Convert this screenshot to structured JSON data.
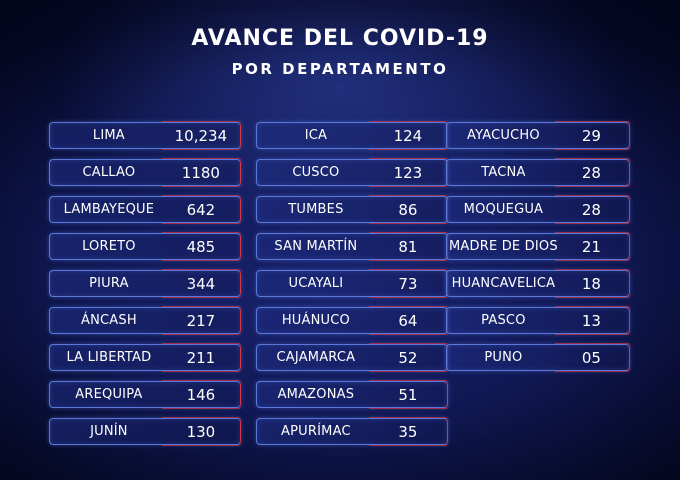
{
  "title": "AVANCE DEL COVID-19",
  "subtitle": "POR DEPARTAMENTO",
  "columns": [
    {
      "rows": [
        {
          "name": "LIMA",
          "value": "10,234"
        },
        {
          "name": "CALLAO",
          "value": "1180"
        },
        {
          "name": "LAMBAYEQUE",
          "value": "642"
        },
        {
          "name": "LORETO",
          "value": "485"
        },
        {
          "name": "PIURA",
          "value": "344"
        },
        {
          "name": "ÁNCASH",
          "value": "217"
        },
        {
          "name": "LA LIBERTAD",
          "value": "211"
        },
        {
          "name": "AREQUIPA",
          "value": "146"
        },
        {
          "name": "JUNÍN",
          "value": "130"
        }
      ]
    },
    {
      "rows": [
        {
          "name": "ICA",
          "value": "124"
        },
        {
          "name": "CUSCO",
          "value": "123"
        },
        {
          "name": "TUMBES",
          "value": "86"
        },
        {
          "name": "SAN MARTÍN",
          "value": "81"
        },
        {
          "name": "UCAYALI",
          "value": "73"
        },
        {
          "name": "HUÁNUCO",
          "value": "64"
        },
        {
          "name": "CAJAMARCA",
          "value": "52"
        },
        {
          "name": "AMAZONAS",
          "value": "51"
        },
        {
          "name": "APURÍMAC",
          "value": "35"
        }
      ]
    },
    {
      "rows": [
        {
          "name": "AYACUCHO",
          "value": "29"
        },
        {
          "name": "TACNA",
          "value": "28"
        },
        {
          "name": "MOQUEGUA",
          "value": "28"
        },
        {
          "name": "MADRE DE DIOS",
          "value": "21"
        },
        {
          "name": "HUANCAVELICA",
          "value": "18"
        },
        {
          "name": "PASCO",
          "value": "13"
        },
        {
          "name": "PUNO",
          "value": "05"
        }
      ]
    }
  ]
}
